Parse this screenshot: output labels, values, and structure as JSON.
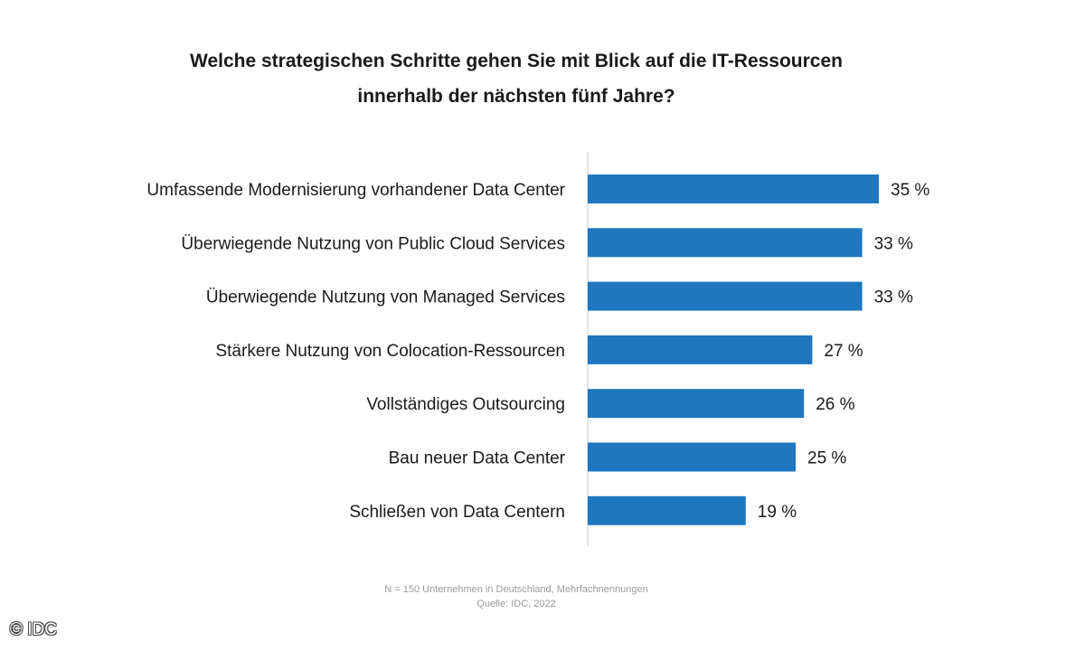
{
  "chart_data": {
    "type": "bar",
    "orientation": "horizontal",
    "title_lines": [
      "Welche strategischen Schritte gehen Sie mit Blick auf die IT-Ressourcen",
      "innerhalb der nächsten fünf Jahre?"
    ],
    "categories": [
      "Umfassende Modernisierung vorhandener Data Center",
      "Überwiegende Nutzung von Public Cloud Services",
      "Überwiegende Nutzung von Managed Services",
      "Stärkere Nutzung von Colocation-Ressourcen",
      "Vollständiges Outsourcing",
      "Bau neuer Data Center",
      "Schließen von Data Centern"
    ],
    "values": [
      35,
      33,
      33,
      27,
      26,
      25,
      19
    ],
    "value_labels": [
      "35 %",
      "33 %",
      "33 %",
      "27 %",
      "26 %",
      "25 %",
      "19 %"
    ],
    "unit": "%",
    "xlim": [
      0,
      35
    ],
    "grid": false,
    "bar_color": "#1f77c0"
  },
  "footnote": {
    "line1": "N = 150 Unternehmen in Deutschland, Mehrfachnennungen",
    "line2": "Quelle: IDC, 2022"
  },
  "copyright": "© IDC"
}
